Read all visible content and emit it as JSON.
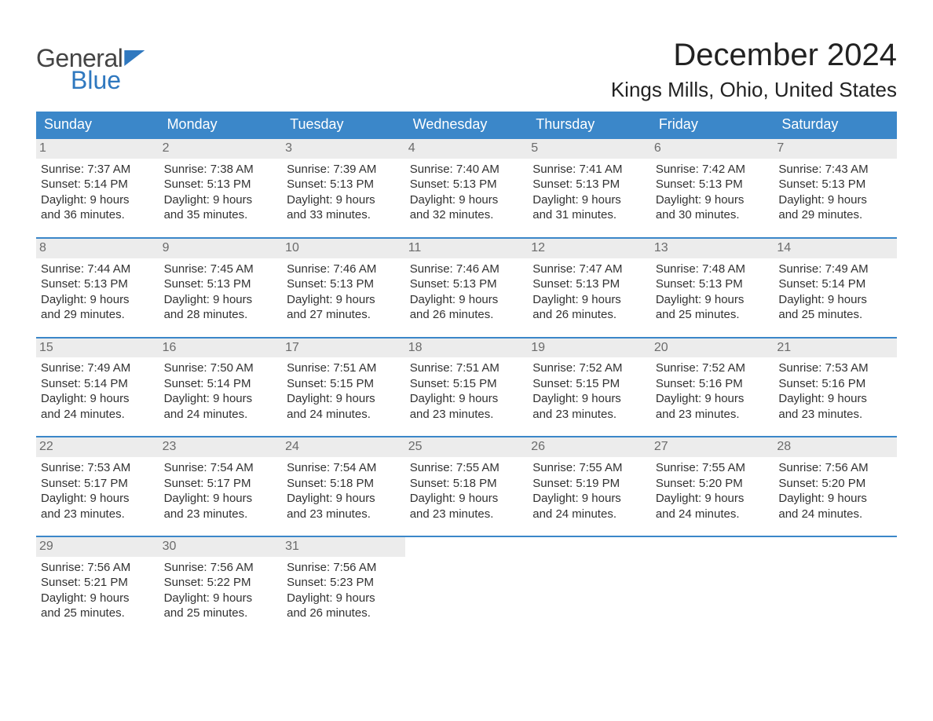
{
  "logo": {
    "line1": "General",
    "line2": "Blue"
  },
  "title": "December 2024",
  "subtitle": "Kings Mills, Ohio, United States",
  "colors": {
    "brand_blue": "#3b87c9",
    "day_bg": "#ececec",
    "text": "#323232",
    "light_text": "#6b6b6b",
    "white": "#ffffff"
  },
  "typography": {
    "title_fontsize": 40,
    "subtitle_fontsize": 26,
    "header_fontsize": 18,
    "cell_fontsize": 15,
    "daynum_fontsize": 16,
    "font_family": "Arial"
  },
  "columns": [
    "Sunday",
    "Monday",
    "Tuesday",
    "Wednesday",
    "Thursday",
    "Friday",
    "Saturday"
  ],
  "weeks": [
    [
      {
        "day": 1,
        "sunrise": "7:37 AM",
        "sunset": "5:14 PM",
        "daylight": "9 hours and 36 minutes."
      },
      {
        "day": 2,
        "sunrise": "7:38 AM",
        "sunset": "5:13 PM",
        "daylight": "9 hours and 35 minutes."
      },
      {
        "day": 3,
        "sunrise": "7:39 AM",
        "sunset": "5:13 PM",
        "daylight": "9 hours and 33 minutes."
      },
      {
        "day": 4,
        "sunrise": "7:40 AM",
        "sunset": "5:13 PM",
        "daylight": "9 hours and 32 minutes."
      },
      {
        "day": 5,
        "sunrise": "7:41 AM",
        "sunset": "5:13 PM",
        "daylight": "9 hours and 31 minutes."
      },
      {
        "day": 6,
        "sunrise": "7:42 AM",
        "sunset": "5:13 PM",
        "daylight": "9 hours and 30 minutes."
      },
      {
        "day": 7,
        "sunrise": "7:43 AM",
        "sunset": "5:13 PM",
        "daylight": "9 hours and 29 minutes."
      }
    ],
    [
      {
        "day": 8,
        "sunrise": "7:44 AM",
        "sunset": "5:13 PM",
        "daylight": "9 hours and 29 minutes."
      },
      {
        "day": 9,
        "sunrise": "7:45 AM",
        "sunset": "5:13 PM",
        "daylight": "9 hours and 28 minutes."
      },
      {
        "day": 10,
        "sunrise": "7:46 AM",
        "sunset": "5:13 PM",
        "daylight": "9 hours and 27 minutes."
      },
      {
        "day": 11,
        "sunrise": "7:46 AM",
        "sunset": "5:13 PM",
        "daylight": "9 hours and 26 minutes."
      },
      {
        "day": 12,
        "sunrise": "7:47 AM",
        "sunset": "5:13 PM",
        "daylight": "9 hours and 26 minutes."
      },
      {
        "day": 13,
        "sunrise": "7:48 AM",
        "sunset": "5:13 PM",
        "daylight": "9 hours and 25 minutes."
      },
      {
        "day": 14,
        "sunrise": "7:49 AM",
        "sunset": "5:14 PM",
        "daylight": "9 hours and 25 minutes."
      }
    ],
    [
      {
        "day": 15,
        "sunrise": "7:49 AM",
        "sunset": "5:14 PM",
        "daylight": "9 hours and 24 minutes."
      },
      {
        "day": 16,
        "sunrise": "7:50 AM",
        "sunset": "5:14 PM",
        "daylight": "9 hours and 24 minutes."
      },
      {
        "day": 17,
        "sunrise": "7:51 AM",
        "sunset": "5:15 PM",
        "daylight": "9 hours and 24 minutes."
      },
      {
        "day": 18,
        "sunrise": "7:51 AM",
        "sunset": "5:15 PM",
        "daylight": "9 hours and 23 minutes."
      },
      {
        "day": 19,
        "sunrise": "7:52 AM",
        "sunset": "5:15 PM",
        "daylight": "9 hours and 23 minutes."
      },
      {
        "day": 20,
        "sunrise": "7:52 AM",
        "sunset": "5:16 PM",
        "daylight": "9 hours and 23 minutes."
      },
      {
        "day": 21,
        "sunrise": "7:53 AM",
        "sunset": "5:16 PM",
        "daylight": "9 hours and 23 minutes."
      }
    ],
    [
      {
        "day": 22,
        "sunrise": "7:53 AM",
        "sunset": "5:17 PM",
        "daylight": "9 hours and 23 minutes."
      },
      {
        "day": 23,
        "sunrise": "7:54 AM",
        "sunset": "5:17 PM",
        "daylight": "9 hours and 23 minutes."
      },
      {
        "day": 24,
        "sunrise": "7:54 AM",
        "sunset": "5:18 PM",
        "daylight": "9 hours and 23 minutes."
      },
      {
        "day": 25,
        "sunrise": "7:55 AM",
        "sunset": "5:18 PM",
        "daylight": "9 hours and 23 minutes."
      },
      {
        "day": 26,
        "sunrise": "7:55 AM",
        "sunset": "5:19 PM",
        "daylight": "9 hours and 24 minutes."
      },
      {
        "day": 27,
        "sunrise": "7:55 AM",
        "sunset": "5:20 PM",
        "daylight": "9 hours and 24 minutes."
      },
      {
        "day": 28,
        "sunrise": "7:56 AM",
        "sunset": "5:20 PM",
        "daylight": "9 hours and 24 minutes."
      }
    ],
    [
      {
        "day": 29,
        "sunrise": "7:56 AM",
        "sunset": "5:21 PM",
        "daylight": "9 hours and 25 minutes."
      },
      {
        "day": 30,
        "sunrise": "7:56 AM",
        "sunset": "5:22 PM",
        "daylight": "9 hours and 25 minutes."
      },
      {
        "day": 31,
        "sunrise": "7:56 AM",
        "sunset": "5:23 PM",
        "daylight": "9 hours and 26 minutes."
      },
      null,
      null,
      null,
      null
    ]
  ],
  "labels": {
    "sunrise_prefix": "Sunrise: ",
    "sunset_prefix": "Sunset: ",
    "daylight_prefix": "Daylight: "
  }
}
